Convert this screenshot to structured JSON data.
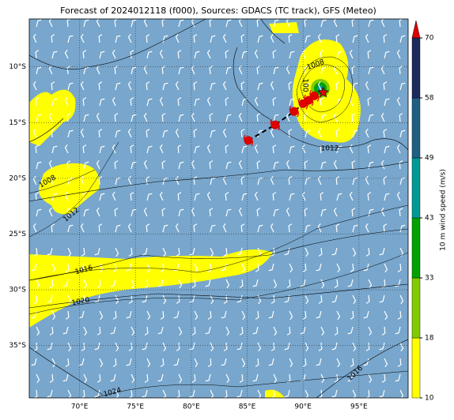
{
  "title": "Forecast of 2024012118 (f000), Sources: GDACS (TC track), GFS (Meteo)",
  "map": {
    "xlim": [
      65.5,
      99.4
    ],
    "ylim": [
      -39.7,
      -5.7
    ],
    "xticks": [
      {
        "value": 70,
        "label": "70°E"
      },
      {
        "value": 75,
        "label": "75°E"
      },
      {
        "value": 80,
        "label": "80°E"
      },
      {
        "value": 85,
        "label": "85°E"
      },
      {
        "value": 90,
        "label": "90°E"
      },
      {
        "value": 95,
        "label": "95°E"
      }
    ],
    "yticks": [
      {
        "value": -10,
        "label": "10°S"
      },
      {
        "value": -15,
        "label": "15°S"
      },
      {
        "value": -20,
        "label": "20°S"
      },
      {
        "value": -25,
        "label": "25°S"
      },
      {
        "value": -30,
        "label": "30°S"
      },
      {
        "value": -35,
        "label": "35°S"
      }
    ],
    "grid": true
  },
  "isobar_labels": [
    "1008",
    "100",
    "1012",
    "1008",
    "1012",
    "1016",
    "1020",
    "1024",
    "1016"
  ],
  "track": {
    "lon": [
      85.1,
      87.5,
      89.2,
      90.0,
      90.5,
      91.0,
      91.8
    ],
    "lat": [
      -16.6,
      -15.2,
      -14.0,
      -13.3,
      -13.0,
      -12.6,
      -12.3
    ]
  },
  "colorbar": {
    "label": "10 m wind speed (m/s)",
    "ticks": [
      10,
      18,
      33,
      43,
      49,
      58,
      70
    ],
    "colors": [
      "#ffff00",
      "#80cc00",
      "#00a300",
      "#009a96",
      "#1f5f84",
      "#1c2b5c"
    ],
    "extend_color": "#e00000"
  }
}
